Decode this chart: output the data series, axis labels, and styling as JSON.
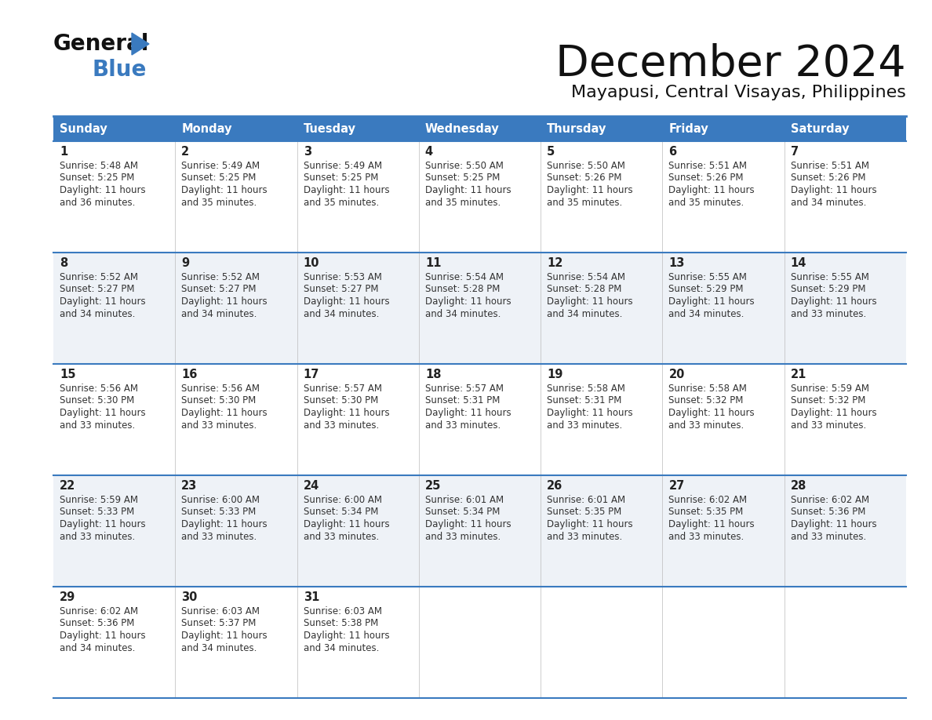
{
  "title": "December 2024",
  "subtitle": "Mayapusi, Central Visayas, Philippines",
  "header_color": "#3a7abf",
  "header_text_color": "#ffffff",
  "row_bg_odd": "#ffffff",
  "row_bg_even": "#eef2f7",
  "text_color": "#333333",
  "border_color": "#3a7abf",
  "days_of_week": [
    "Sunday",
    "Monday",
    "Tuesday",
    "Wednesday",
    "Thursday",
    "Friday",
    "Saturday"
  ],
  "calendar_data": [
    [
      {
        "day": 1,
        "sunrise": "5:48 AM",
        "sunset": "5:25 PM",
        "daylight": "11 hours and 36 minutes."
      },
      {
        "day": 2,
        "sunrise": "5:49 AM",
        "sunset": "5:25 PM",
        "daylight": "11 hours and 35 minutes."
      },
      {
        "day": 3,
        "sunrise": "5:49 AM",
        "sunset": "5:25 PM",
        "daylight": "11 hours and 35 minutes."
      },
      {
        "day": 4,
        "sunrise": "5:50 AM",
        "sunset": "5:25 PM",
        "daylight": "11 hours and 35 minutes."
      },
      {
        "day": 5,
        "sunrise": "5:50 AM",
        "sunset": "5:26 PM",
        "daylight": "11 hours and 35 minutes."
      },
      {
        "day": 6,
        "sunrise": "5:51 AM",
        "sunset": "5:26 PM",
        "daylight": "11 hours and 35 minutes."
      },
      {
        "day": 7,
        "sunrise": "5:51 AM",
        "sunset": "5:26 PM",
        "daylight": "11 hours and 34 minutes."
      }
    ],
    [
      {
        "day": 8,
        "sunrise": "5:52 AM",
        "sunset": "5:27 PM",
        "daylight": "11 hours and 34 minutes."
      },
      {
        "day": 9,
        "sunrise": "5:52 AM",
        "sunset": "5:27 PM",
        "daylight": "11 hours and 34 minutes."
      },
      {
        "day": 10,
        "sunrise": "5:53 AM",
        "sunset": "5:27 PM",
        "daylight": "11 hours and 34 minutes."
      },
      {
        "day": 11,
        "sunrise": "5:54 AM",
        "sunset": "5:28 PM",
        "daylight": "11 hours and 34 minutes."
      },
      {
        "day": 12,
        "sunrise": "5:54 AM",
        "sunset": "5:28 PM",
        "daylight": "11 hours and 34 minutes."
      },
      {
        "day": 13,
        "sunrise": "5:55 AM",
        "sunset": "5:29 PM",
        "daylight": "11 hours and 34 minutes."
      },
      {
        "day": 14,
        "sunrise": "5:55 AM",
        "sunset": "5:29 PM",
        "daylight": "11 hours and 33 minutes."
      }
    ],
    [
      {
        "day": 15,
        "sunrise": "5:56 AM",
        "sunset": "5:30 PM",
        "daylight": "11 hours and 33 minutes."
      },
      {
        "day": 16,
        "sunrise": "5:56 AM",
        "sunset": "5:30 PM",
        "daylight": "11 hours and 33 minutes."
      },
      {
        "day": 17,
        "sunrise": "5:57 AM",
        "sunset": "5:30 PM",
        "daylight": "11 hours and 33 minutes."
      },
      {
        "day": 18,
        "sunrise": "5:57 AM",
        "sunset": "5:31 PM",
        "daylight": "11 hours and 33 minutes."
      },
      {
        "day": 19,
        "sunrise": "5:58 AM",
        "sunset": "5:31 PM",
        "daylight": "11 hours and 33 minutes."
      },
      {
        "day": 20,
        "sunrise": "5:58 AM",
        "sunset": "5:32 PM",
        "daylight": "11 hours and 33 minutes."
      },
      {
        "day": 21,
        "sunrise": "5:59 AM",
        "sunset": "5:32 PM",
        "daylight": "11 hours and 33 minutes."
      }
    ],
    [
      {
        "day": 22,
        "sunrise": "5:59 AM",
        "sunset": "5:33 PM",
        "daylight": "11 hours and 33 minutes."
      },
      {
        "day": 23,
        "sunrise": "6:00 AM",
        "sunset": "5:33 PM",
        "daylight": "11 hours and 33 minutes."
      },
      {
        "day": 24,
        "sunrise": "6:00 AM",
        "sunset": "5:34 PM",
        "daylight": "11 hours and 33 minutes."
      },
      {
        "day": 25,
        "sunrise": "6:01 AM",
        "sunset": "5:34 PM",
        "daylight": "11 hours and 33 minutes."
      },
      {
        "day": 26,
        "sunrise": "6:01 AM",
        "sunset": "5:35 PM",
        "daylight": "11 hours and 33 minutes."
      },
      {
        "day": 27,
        "sunrise": "6:02 AM",
        "sunset": "5:35 PM",
        "daylight": "11 hours and 33 minutes."
      },
      {
        "day": 28,
        "sunrise": "6:02 AM",
        "sunset": "5:36 PM",
        "daylight": "11 hours and 33 minutes."
      }
    ],
    [
      {
        "day": 29,
        "sunrise": "6:02 AM",
        "sunset": "5:36 PM",
        "daylight": "11 hours and 34 minutes."
      },
      {
        "day": 30,
        "sunrise": "6:03 AM",
        "sunset": "5:37 PM",
        "daylight": "11 hours and 34 minutes."
      },
      {
        "day": 31,
        "sunrise": "6:03 AM",
        "sunset": "5:38 PM",
        "daylight": "11 hours and 34 minutes."
      },
      null,
      null,
      null,
      null
    ]
  ]
}
